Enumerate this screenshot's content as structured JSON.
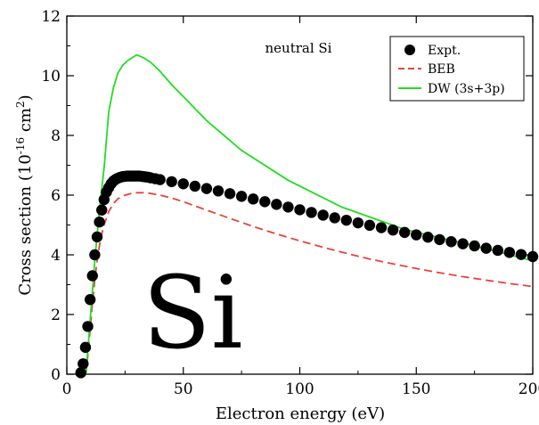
{
  "chart_data": {
    "type": "line",
    "title": "",
    "annotation": "neutral Si",
    "overlay_label": "Si",
    "xlabel": "Electron energy (eV)",
    "ylabel": {
      "prefix": "Cross section (10",
      "exp1": "-16",
      "mid": " cm",
      "exp2": "2",
      "suffix": ")"
    },
    "xlim": [
      0,
      200
    ],
    "ylim": [
      0,
      12
    ],
    "x_ticks": [
      0,
      50,
      100,
      150,
      200
    ],
    "x_tick_labels": [
      "0",
      "50",
      "100",
      "150",
      "200"
    ],
    "y_ticks": [
      0,
      2,
      4,
      6,
      8,
      10,
      12
    ],
    "y_tick_labels": [
      "0",
      "2",
      "4",
      "6",
      "8",
      "10",
      "12"
    ],
    "legend_position": "top-right",
    "grid": false,
    "series": [
      {
        "name": "Expt.",
        "style": "markers",
        "color": "#000000",
        "x": [
          6,
          7,
          8,
          9,
          10,
          11,
          12,
          13,
          14,
          15,
          16,
          17,
          18,
          19,
          20,
          21,
          22,
          23,
          24,
          25,
          26,
          27,
          28,
          29,
          30,
          31,
          32,
          33,
          34,
          35,
          36,
          38,
          40,
          45,
          50,
          55,
          60,
          65,
          70,
          75,
          80,
          85,
          90,
          95,
          100,
          105,
          110,
          115,
          120,
          125,
          130,
          135,
          140,
          145,
          150,
          155,
          160,
          165,
          170,
          175,
          180,
          185,
          190,
          195,
          200
        ],
        "y": [
          0.05,
          0.35,
          0.9,
          1.6,
          2.5,
          3.3,
          4.0,
          4.6,
          5.1,
          5.5,
          5.85,
          6.1,
          6.25,
          6.38,
          6.47,
          6.53,
          6.57,
          6.6,
          6.62,
          6.63,
          6.64,
          6.64,
          6.64,
          6.64,
          6.64,
          6.64,
          6.63,
          6.62,
          6.61,
          6.6,
          6.58,
          6.55,
          6.52,
          6.45,
          6.38,
          6.3,
          6.22,
          6.14,
          6.05,
          5.96,
          5.87,
          5.78,
          5.69,
          5.6,
          5.51,
          5.42,
          5.33,
          5.24,
          5.16,
          5.07,
          4.99,
          4.91,
          4.83,
          4.75,
          4.67,
          4.59,
          4.51,
          4.44,
          4.37,
          4.3,
          4.22,
          4.15,
          4.08,
          4.01,
          3.94
        ]
      },
      {
        "name": "BEB",
        "style": "dashed",
        "color": "#e8433a",
        "x": [
          8.2,
          9,
          10,
          11,
          12,
          13,
          14,
          15,
          16,
          18,
          20,
          22,
          25,
          28,
          30,
          33,
          35,
          40,
          45,
          50,
          60,
          70,
          80,
          90,
          100,
          110,
          120,
          130,
          140,
          150,
          160,
          170,
          180,
          190,
          200
        ],
        "y": [
          0.0,
          0.6,
          1.5,
          2.4,
          3.15,
          3.8,
          4.3,
          4.7,
          5.0,
          5.45,
          5.72,
          5.88,
          6.0,
          6.06,
          6.08,
          6.08,
          6.07,
          6.0,
          5.9,
          5.78,
          5.5,
          5.22,
          4.95,
          4.7,
          4.47,
          4.25,
          4.05,
          3.86,
          3.7,
          3.54,
          3.4,
          3.27,
          3.15,
          3.04,
          2.94
        ]
      },
      {
        "name": "DW (3s+3p)",
        "style": "solid",
        "color": "#22dd22",
        "x": [
          8.2,
          10,
          12,
          14,
          16,
          18,
          20,
          22,
          24,
          26,
          28,
          30,
          33,
          36,
          40,
          45,
          50,
          60,
          75,
          95,
          118,
          145,
          175,
          200
        ],
        "y": [
          0.0,
          1.8,
          3.8,
          5.5,
          6.9,
          8.8,
          9.6,
          10.1,
          10.35,
          10.5,
          10.6,
          10.7,
          10.6,
          10.45,
          10.15,
          9.7,
          9.3,
          8.5,
          7.5,
          6.5,
          5.6,
          4.85,
          4.3,
          3.8
        ]
      }
    ]
  }
}
